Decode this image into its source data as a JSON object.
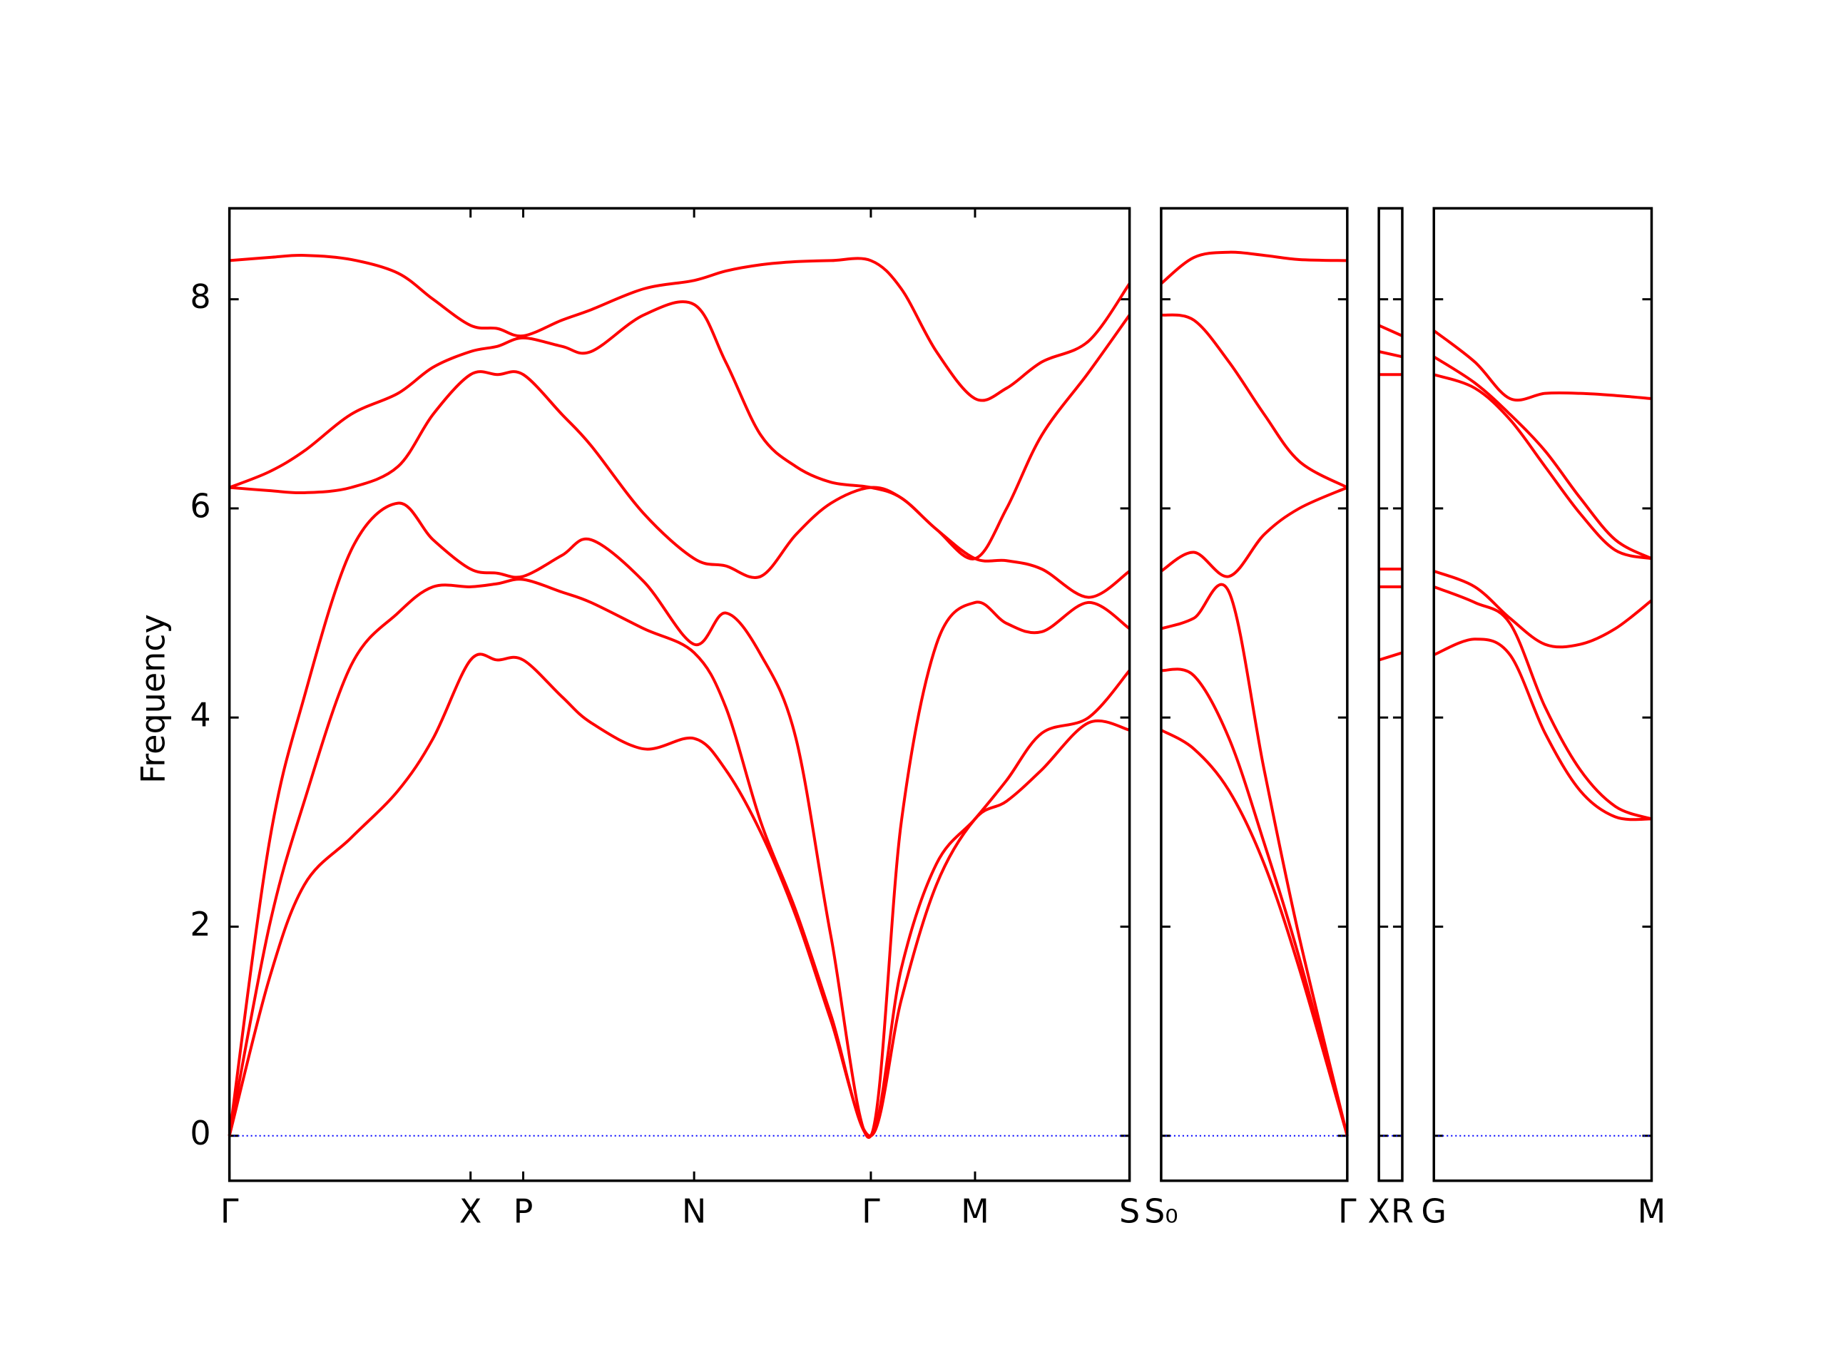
{
  "chart_data": [
    {
      "type": "line",
      "ylabel": "Frequency",
      "color": "#ff0000",
      "zero_line": {
        "y": 0,
        "color": "#0000ff"
      },
      "x": [
        0,
        0.34,
        0.64,
        1.04,
        1.44,
        1.74,
        2.06,
        2.29,
        2.51,
        2.84,
        3.09,
        3.54,
        3.97,
        4.24,
        4.54,
        4.84,
        5.14,
        5.48,
        5.74,
        6.04,
        6.37,
        6.64,
        6.94,
        7.34,
        7.69
      ],
      "xlim": [
        0,
        7.69
      ],
      "xticks": [
        {
          "value": 0,
          "label": "Γ"
        },
        {
          "value": 2.06,
          "label": "X"
        },
        {
          "value": 2.51,
          "label": "P"
        },
        {
          "value": 3.97,
          "label": "N"
        },
        {
          "value": 5.48,
          "label": "Γ"
        },
        {
          "value": 6.37,
          "label": "M"
        },
        {
          "value": 7.69,
          "label": "S"
        }
      ],
      "ylim": [
        -0.43,
        8.87
      ],
      "yticks": [
        0,
        2,
        4,
        6,
        8
      ],
      "series": [
        {
          "values": [
            0,
            1.5,
            2.4,
            2.85,
            3.3,
            3.8,
            4.55,
            4.55,
            4.55,
            4.2,
            3.95,
            3.7,
            3.8,
            3.5,
            2.9,
            2.1,
            1.1,
            0,
            1.3,
            2.4,
            3.03,
            3.2,
            3.5,
            3.95,
            3.88
          ]
        },
        {
          "values": [
            0,
            2.0,
            3.2,
            4.5,
            5.0,
            5.25,
            5.25,
            5.28,
            5.32,
            5.2,
            5.1,
            4.85,
            4.62,
            4.1,
            3.0,
            2.15,
            1.15,
            0,
            1.6,
            2.6,
            3.03,
            3.4,
            3.85,
            4.0,
            4.45
          ]
        },
        {
          "values": [
            0,
            2.8,
            4.2,
            5.6,
            6.05,
            5.7,
            5.42,
            5.38,
            5.35,
            5.55,
            5.7,
            5.3,
            4.7,
            5.0,
            4.6,
            3.8,
            1.9,
            0,
            3.0,
            4.7,
            5.1,
            4.9,
            4.82,
            5.1,
            4.85
          ]
        },
        {
          "values": [
            6.2,
            6.17,
            6.15,
            6.2,
            6.4,
            6.9,
            7.28,
            7.28,
            7.28,
            6.9,
            6.6,
            5.95,
            5.52,
            5.45,
            5.35,
            5.75,
            6.05,
            6.2,
            6.1,
            5.8,
            5.52,
            5.5,
            5.42,
            5.15,
            5.4
          ]
        },
        {
          "values": [
            6.2,
            6.35,
            6.55,
            6.9,
            7.1,
            7.35,
            7.5,
            7.55,
            7.63,
            7.55,
            7.5,
            7.85,
            7.95,
            7.4,
            6.7,
            6.4,
            6.25,
            6.2,
            6.1,
            5.8,
            5.52,
            6.0,
            6.7,
            7.3,
            7.85
          ]
        },
        {
          "values": [
            8.37,
            8.4,
            8.42,
            8.38,
            8.25,
            8.0,
            7.75,
            7.72,
            7.65,
            7.8,
            7.9,
            8.1,
            8.18,
            8.27,
            8.33,
            8.36,
            8.37,
            8.37,
            8.1,
            7.5,
            7.05,
            7.15,
            7.4,
            7.6,
            8.15
          ]
        }
      ]
    },
    {
      "type": "line",
      "color": "#ff0000",
      "zero_line": {
        "y": 0,
        "color": "#0000ff"
      },
      "x": [
        7.69,
        7.97,
        8.27,
        8.57,
        8.87,
        9.28
      ],
      "xlim": [
        7.69,
        9.28
      ],
      "xticks": [
        {
          "value": 7.69,
          "label": "S₀"
        },
        {
          "value": 9.28,
          "label": "Γ"
        }
      ],
      "ylim": [
        -0.43,
        8.87
      ],
      "yticks": [
        0,
        2,
        4,
        6,
        8
      ],
      "series": [
        {
          "values": [
            3.88,
            3.7,
            3.3,
            2.6,
            1.6,
            0
          ]
        },
        {
          "values": [
            4.45,
            4.4,
            3.8,
            2.8,
            1.7,
            0
          ]
        },
        {
          "values": [
            4.85,
            4.95,
            5.2,
            3.5,
            1.9,
            0
          ]
        },
        {
          "values": [
            5.4,
            5.58,
            5.35,
            5.75,
            6.0,
            6.2
          ]
        },
        {
          "values": [
            7.85,
            7.8,
            7.4,
            6.9,
            6.45,
            6.2
          ]
        },
        {
          "values": [
            8.15,
            8.4,
            8.45,
            8.42,
            8.38,
            8.37
          ]
        }
      ]
    },
    {
      "type": "line",
      "color": "#ff0000",
      "zero_line": {
        "y": 0,
        "color": "#0000ff"
      },
      "x": [
        9.28,
        9.48
      ],
      "xlim": [
        9.28,
        9.48
      ],
      "xticks": [
        {
          "value": 9.28,
          "label": "X"
        },
        {
          "value": 9.48,
          "label": "R"
        }
      ],
      "ylim": [
        -0.43,
        8.87
      ],
      "yticks": [
        0,
        2,
        4,
        6,
        8
      ],
      "series": [
        {
          "values": [
            4.55,
            4.62
          ]
        },
        {
          "values": [
            5.25,
            5.25
          ]
        },
        {
          "values": [
            5.42,
            5.42
          ]
        },
        {
          "values": [
            7.28,
            7.28
          ]
        },
        {
          "values": [
            7.5,
            7.45
          ]
        },
        {
          "values": [
            7.75,
            7.65
          ]
        }
      ]
    },
    {
      "type": "line",
      "color": "#ff0000",
      "zero_line": {
        "y": 0,
        "color": "#0000ff"
      },
      "x": [
        9.48,
        9.83,
        10.13,
        10.43,
        10.73,
        11.03,
        11.34
      ],
      "xlim": [
        9.48,
        11.34
      ],
      "xticks": [
        {
          "value": 9.48,
          "label": "G"
        },
        {
          "value": 11.34,
          "label": "M"
        }
      ],
      "ylim": [
        -0.43,
        8.87
      ],
      "yticks": [
        0,
        2,
        4,
        6,
        8
      ],
      "series": [
        {
          "values": [
            4.6,
            4.75,
            4.6,
            3.85,
            3.3,
            3.05,
            3.03
          ]
        },
        {
          "values": [
            5.25,
            5.1,
            4.9,
            4.1,
            3.5,
            3.15,
            3.03
          ]
        },
        {
          "values": [
            5.4,
            5.25,
            4.95,
            4.7,
            4.7,
            4.85,
            5.12
          ]
        },
        {
          "values": [
            7.28,
            7.15,
            6.85,
            6.4,
            5.95,
            5.6,
            5.52
          ]
        },
        {
          "values": [
            7.45,
            7.2,
            6.9,
            6.55,
            6.1,
            5.7,
            5.52
          ]
        },
        {
          "values": [
            7.7,
            7.4,
            7.05,
            7.1,
            7.1,
            7.08,
            7.05
          ]
        }
      ]
    }
  ]
}
